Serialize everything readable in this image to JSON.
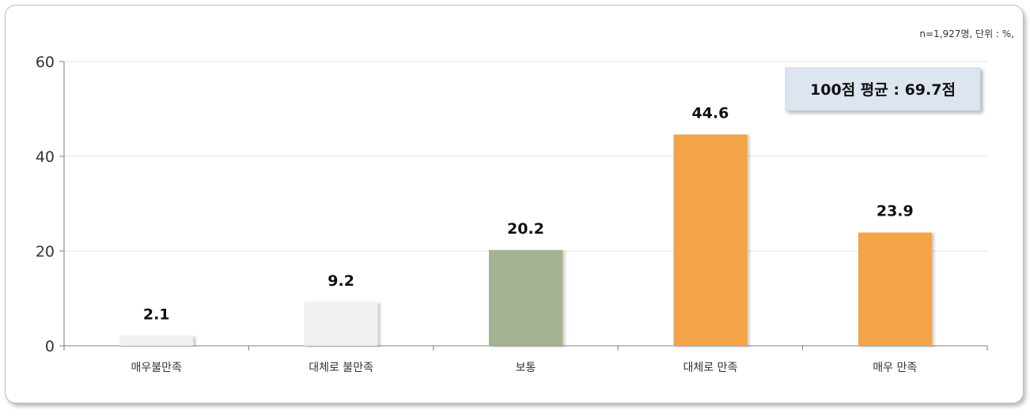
{
  "chart_data": {
    "type": "bar",
    "note": "n=1,927명, 단위 : %,",
    "callout": "100점 평균 : 69.7점",
    "categories": [
      "매우불만족",
      "대체로 불만족",
      "보통",
      "대체로 만족",
      "매우 만족"
    ],
    "values": [
      2.1,
      9.2,
      20.2,
      44.6,
      23.9
    ],
    "value_labels": [
      "2.1",
      "9.2",
      "20.2",
      "44.6",
      "23.9"
    ],
    "bar_colors": [
      "#f0f0f0",
      "#f0f0f0",
      "#a3b28f",
      "#f2a447",
      "#f2a447"
    ],
    "ylim": [
      0,
      60
    ],
    "yticks": [
      0,
      20,
      40,
      60
    ],
    "grid": true
  }
}
